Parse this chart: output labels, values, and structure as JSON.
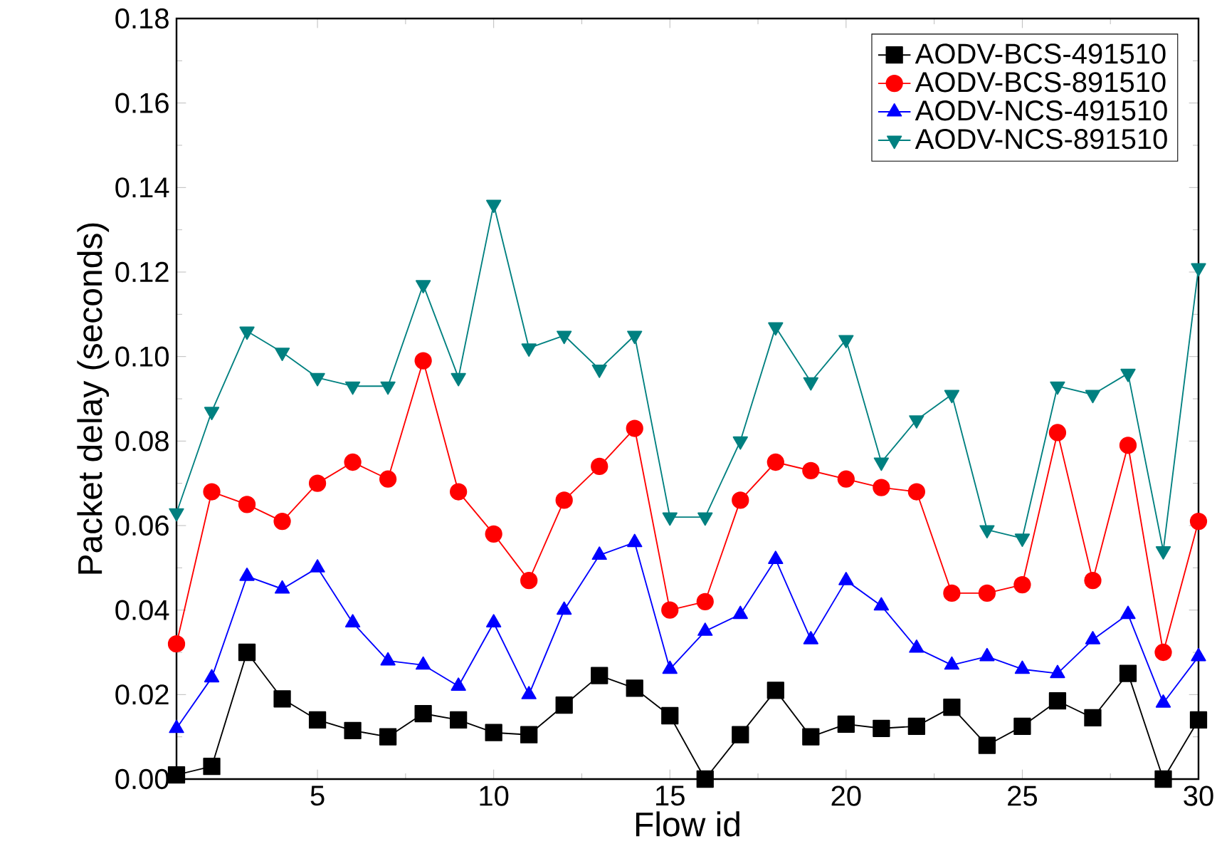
{
  "chart_data": {
    "type": "line",
    "xlabel": "Flow id",
    "ylabel": "Packet delay (seconds)",
    "x": [
      1,
      2,
      3,
      4,
      5,
      6,
      7,
      8,
      9,
      10,
      11,
      12,
      13,
      14,
      15,
      16,
      17,
      18,
      19,
      20,
      21,
      22,
      23,
      24,
      25,
      26,
      27,
      28,
      29,
      30
    ],
    "xlim": [
      1,
      30
    ],
    "xticks": [
      5,
      10,
      15,
      20,
      25,
      30
    ],
    "ylim": [
      0,
      0.18
    ],
    "yticks": [
      {
        "value": 0,
        "label": "0.00"
      },
      0.02,
      0.04,
      0.06,
      0.08,
      {
        "value": 0.1,
        "label": "0.10"
      },
      0.12,
      0.14,
      0.16,
      0.18
    ],
    "legend": "top right",
    "grid": false,
    "line_style": "solid",
    "series": [
      {
        "name": "AODV-BCS-491510",
        "color": "#000000",
        "marker": "square",
        "values": [
          0.001,
          0.003,
          0.03,
          0.019,
          0.014,
          0.0115,
          0.01,
          0.0155,
          0.014,
          0.011,
          0.0105,
          0.0175,
          0.0245,
          0.0215,
          0.015,
          0.0,
          0.0105,
          0.021,
          0.01,
          0.013,
          0.012,
          0.0125,
          0.017,
          0.008,
          0.0125,
          0.0185,
          0.0145,
          0.025,
          0.0,
          0.014
        ]
      },
      {
        "name": "AODV-BCS-891510",
        "color": "#ff0000",
        "marker": "circle",
        "values": [
          0.032,
          0.068,
          0.065,
          0.061,
          0.07,
          0.075,
          0.071,
          0.099,
          0.068,
          0.058,
          0.047,
          0.066,
          0.074,
          0.083,
          0.04,
          0.042,
          0.066,
          0.075,
          0.073,
          0.071,
          0.069,
          0.068,
          0.044,
          0.044,
          0.046,
          0.082,
          0.047,
          0.079,
          0.03,
          0.061
        ]
      },
      {
        "name": "AODV-NCS-491510",
        "color": "#0000ff",
        "marker": "triangle",
        "values": [
          0.012,
          0.024,
          0.048,
          0.045,
          0.05,
          0.037,
          0.028,
          0.027,
          0.022,
          0.037,
          0.02,
          0.04,
          0.053,
          0.056,
          0.026,
          0.035,
          0.039,
          0.052,
          0.033,
          0.047,
          0.041,
          0.031,
          0.027,
          0.029,
          0.026,
          0.025,
          0.033,
          0.039,
          0.018,
          0.029
        ]
      },
      {
        "name": "AODV-NCS-891510",
        "color": "#008080",
        "marker": "triangle-down",
        "values": [
          0.063,
          0.087,
          0.106,
          0.101,
          0.095,
          0.093,
          0.093,
          0.117,
          0.095,
          0.136,
          0.102,
          0.105,
          0.097,
          0.105,
          0.062,
          0.062,
          0.08,
          0.107,
          0.094,
          0.104,
          0.075,
          0.085,
          0.091,
          0.059,
          0.057,
          0.093,
          0.091,
          0.096,
          0.054,
          0.121
        ]
      }
    ]
  }
}
